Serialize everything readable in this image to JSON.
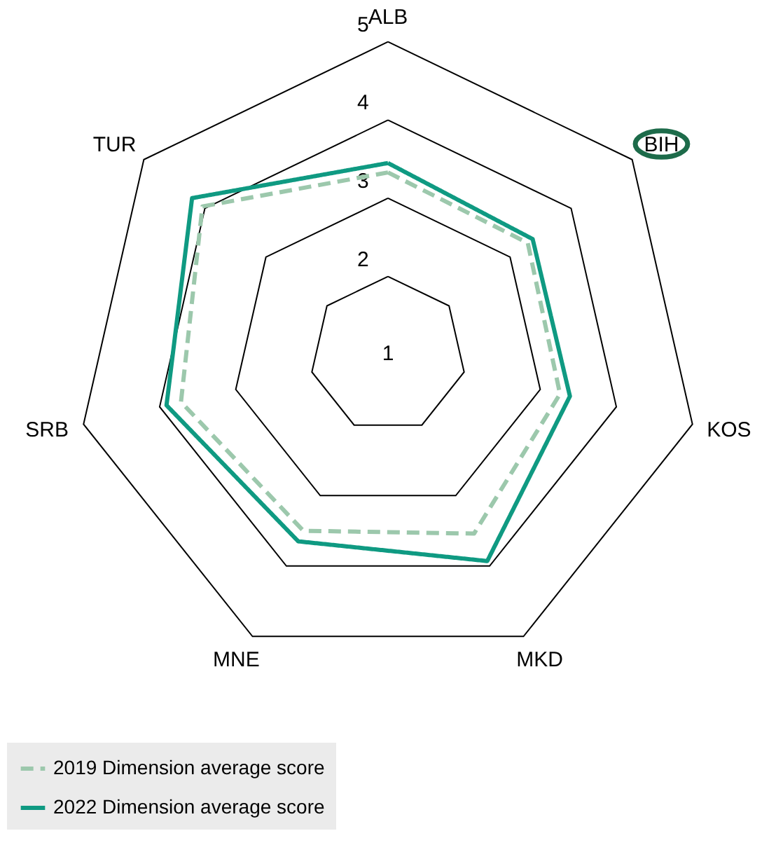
{
  "chart_data": {
    "type": "radar",
    "categories": [
      "ALB",
      "BIH",
      "KOS",
      "MKD",
      "MNE",
      "SRB",
      "TUR"
    ],
    "ylim": [
      1,
      5
    ],
    "yticks": [
      1,
      2,
      3,
      4,
      5
    ],
    "legend": "bottom",
    "marker": "none",
    "series": [
      {
        "name": "2019 Dimension average score",
        "color": "#9cc8ac",
        "line_style": "dashed",
        "values": [
          3.33,
          3.29,
          3.26,
          3.54,
          3.5,
          3.72,
          4.04
        ]
      },
      {
        "name": "2022 Dimension average score",
        "color": "#0f9a82",
        "line_style": "solid",
        "values": [
          3.45,
          3.37,
          3.39,
          3.93,
          3.65,
          3.91,
          4.21
        ]
      }
    ]
  }
}
